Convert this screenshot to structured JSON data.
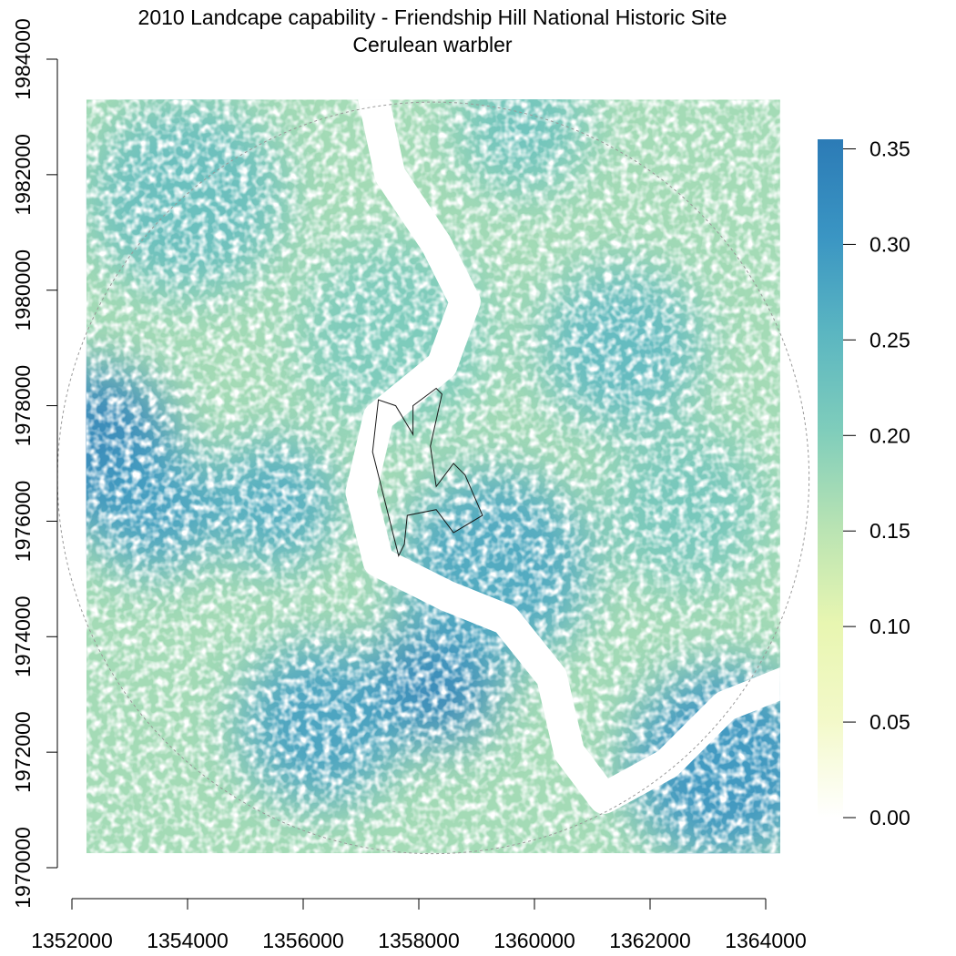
{
  "title": {
    "line1": "2010 Landcape capability - Friendship Hill National Historic Site",
    "line2": "Cerulean warbler"
  },
  "map": {
    "x_ticks": [
      1352000,
      1354000,
      1356000,
      1358000,
      1360000,
      1362000,
      1364000
    ],
    "y_ticks": [
      1970000,
      1972000,
      1974000,
      1976000,
      1978000,
      1980000,
      1982000,
      1984000
    ],
    "x_range": [
      1352000,
      1364000
    ],
    "y_range": [
      1970000,
      1984000
    ],
    "raster_extent": {
      "x": [
        1352250,
        1364250
      ],
      "y": [
        1970250,
        1983300
      ]
    },
    "buffer_center": [
      1358250,
      1976750
    ],
    "buffer_radius": 6500,
    "site_boundary": [
      [
        1357900,
        1977500
      ],
      [
        1357600,
        1978000
      ],
      [
        1357300,
        1978100
      ],
      [
        1357200,
        1977200
      ],
      [
        1357400,
        1976400
      ],
      [
        1357550,
        1975800
      ],
      [
        1357650,
        1975400
      ],
      [
        1357750,
        1975600
      ],
      [
        1357800,
        1976100
      ],
      [
        1358300,
        1976200
      ],
      [
        1358600,
        1975800
      ],
      [
        1359100,
        1976100
      ],
      [
        1358800,
        1976800
      ],
      [
        1358600,
        1977000
      ],
      [
        1358300,
        1976600
      ],
      [
        1358200,
        1977300
      ],
      [
        1358400,
        1978200
      ],
      [
        1358300,
        1978300
      ],
      [
        1357900,
        1978000
      ]
    ],
    "river_path": [
      [
        1357200,
        1983400
      ],
      [
        1357500,
        1982000
      ],
      [
        1358300,
        1980800
      ],
      [
        1358800,
        1979800
      ],
      [
        1358400,
        1978700
      ],
      [
        1357300,
        1977800
      ],
      [
        1357000,
        1976500
      ],
      [
        1357300,
        1975300
      ],
      [
        1358500,
        1974700
      ],
      [
        1359500,
        1974300
      ],
      [
        1360300,
        1973300
      ],
      [
        1360600,
        1972000
      ],
      [
        1361200,
        1971200
      ],
      [
        1362300,
        1971800
      ],
      [
        1363300,
        1972800
      ],
      [
        1364300,
        1973200
      ]
    ],
    "high_value_zones": [
      {
        "x": 1358300,
        "y": 1973200,
        "v": 0.34
      },
      {
        "x": 1352400,
        "y": 1977300,
        "v": 0.34
      },
      {
        "x": 1363300,
        "y": 1971800,
        "v": 0.31
      },
      {
        "x": 1353400,
        "y": 1976200,
        "v": 0.29
      },
      {
        "x": 1356300,
        "y": 1972500,
        "v": 0.29
      },
      {
        "x": 1359300,
        "y": 1975200,
        "v": 0.28
      },
      {
        "x": 1355500,
        "y": 1976300,
        "v": 0.27
      },
      {
        "x": 1361500,
        "y": 1979000,
        "v": 0.25
      },
      {
        "x": 1354000,
        "y": 1981600,
        "v": 0.24
      },
      {
        "x": 1359800,
        "y": 1982800,
        "v": 0.23
      },
      {
        "x": 1362600,
        "y": 1976200,
        "v": 0.22
      },
      {
        "x": 1357600,
        "y": 1979200,
        "v": 0.21
      }
    ]
  },
  "legend": {
    "min": 0.0,
    "max": 0.355,
    "labels": [
      "0.35",
      "0.30",
      "0.25",
      "0.20",
      "0.15",
      "0.10",
      "0.05",
      "0.00"
    ],
    "values": [
      0.35,
      0.3,
      0.25,
      0.2,
      0.15,
      0.1,
      0.05,
      0.0
    ],
    "colors": [
      "#ffffff",
      "#f3f9c9",
      "#e8f6b1",
      "#b8e3b3",
      "#7fcdbb",
      "#5bb6c1",
      "#3a95c3",
      "#2c7bb6"
    ]
  }
}
